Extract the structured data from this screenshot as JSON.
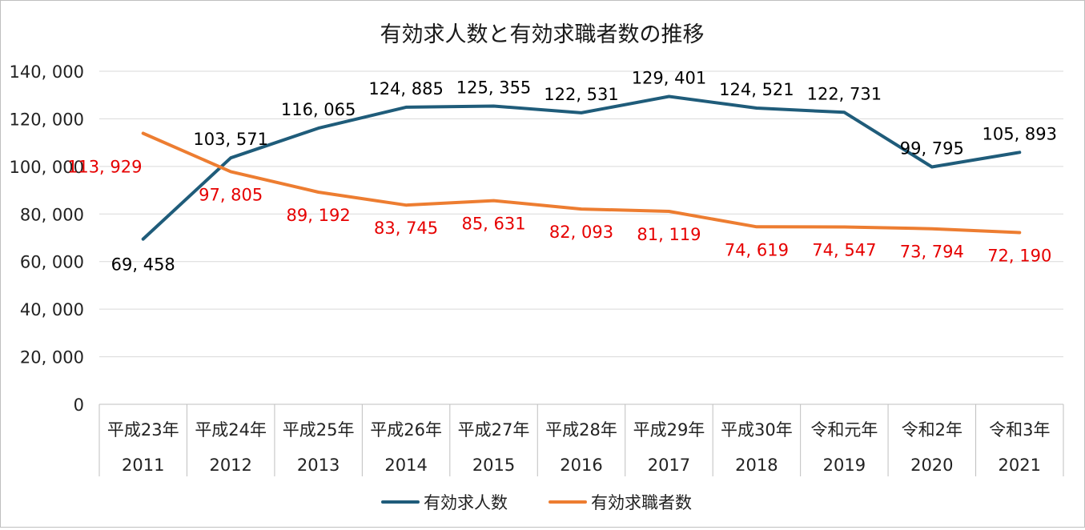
{
  "chart_data": {
    "type": "line",
    "title": "有効求人数と有効求職者数の推移",
    "categories": [
      {
        "era": "平成23年",
        "year": "2011"
      },
      {
        "era": "平成24年",
        "year": "2012"
      },
      {
        "era": "平成25年",
        "year": "2013"
      },
      {
        "era": "平成26年",
        "year": "2014"
      },
      {
        "era": "平成27年",
        "year": "2015"
      },
      {
        "era": "平成28年",
        "year": "2016"
      },
      {
        "era": "平成29年",
        "year": "2017"
      },
      {
        "era": "平成30年",
        "year": "2018"
      },
      {
        "era": "令和元年",
        "year": "2019"
      },
      {
        "era": "令和2年",
        "year": "2020"
      },
      {
        "era": "令和3年",
        "year": "2021"
      }
    ],
    "ylim": [
      0,
      140000
    ],
    "yticks": [
      0,
      20000,
      40000,
      60000,
      80000,
      100000,
      120000,
      140000
    ],
    "ytick_labels": [
      "0",
      "20, 000",
      "40, 000",
      "60, 000",
      "80, 000",
      "100, 000",
      "120, 000",
      "140, 000"
    ],
    "grid": true,
    "legend_position": "bottom",
    "series": [
      {
        "name": "有効求人数",
        "color": "#1f5c7a",
        "label_color": "#000000",
        "values": [
          69458,
          103571,
          116065,
          124885,
          125355,
          122531,
          129401,
          124521,
          122731,
          99795,
          105893
        ],
        "labels": [
          "69, 458",
          "103, 571",
          "116, 065",
          "124, 885",
          "125, 355",
          "122, 531",
          "129, 401",
          "124, 521",
          "122, 731",
          "99, 795",
          "105, 893"
        ]
      },
      {
        "name": "有効求職者数",
        "color": "#ed7d31",
        "label_color": "#e60000",
        "values": [
          113929,
          97805,
          89192,
          83745,
          85631,
          82093,
          81119,
          74619,
          74547,
          73794,
          72190
        ],
        "labels": [
          "113, 929",
          "97, 805",
          "89, 192",
          "83, 745",
          "85, 631",
          "82, 093",
          "81, 119",
          "74, 619",
          "74, 547",
          "73, 794",
          "72, 190"
        ]
      }
    ]
  }
}
